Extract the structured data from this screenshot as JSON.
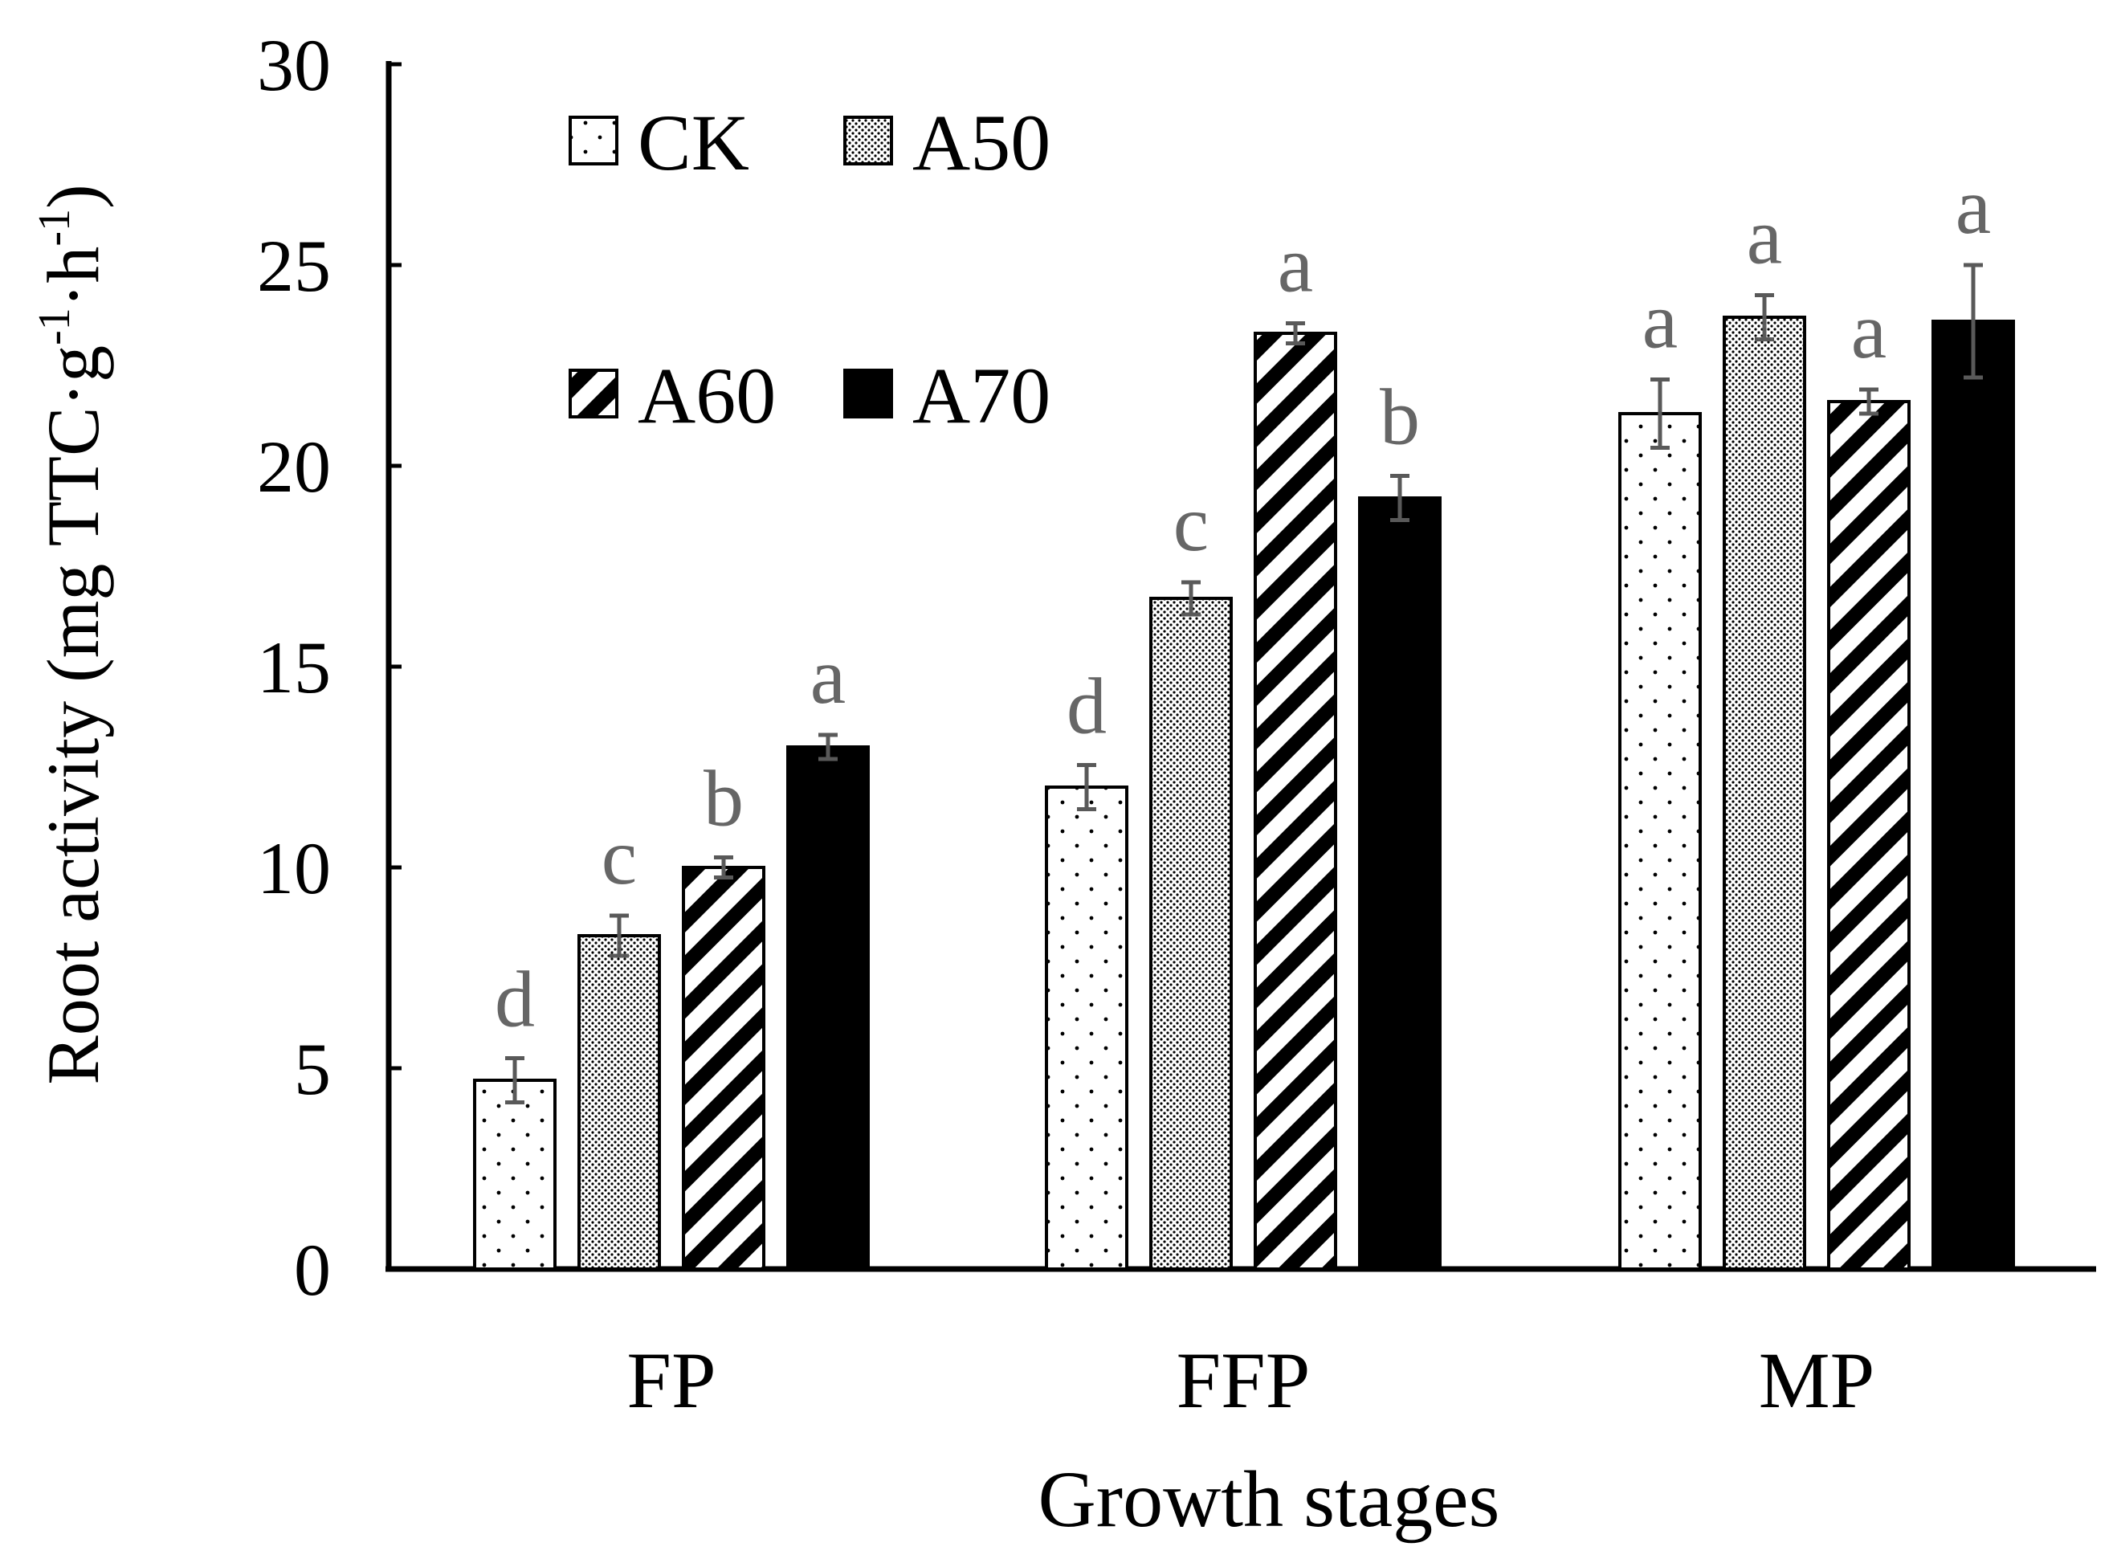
{
  "chart_data": {
    "type": "bar",
    "title": "",
    "xlabel": "Growth stages",
    "ylabel": "Root activity (mg TTC·g",
    "ylabel_sup1": "-1",
    "ylabel_mid": "·h",
    "ylabel_sup2": "-1",
    "ylabel_end": ")",
    "ylim": [
      0,
      30
    ],
    "yticks": [
      "0",
      "5",
      "10",
      "15",
      "20",
      "25",
      "30"
    ],
    "categories": [
      "FP",
      "FFP",
      "MP"
    ],
    "legend_position": "top-left",
    "series": [
      {
        "name": "CK",
        "pattern": "dots",
        "values": [
          4.7,
          12.0,
          21.3
        ],
        "errors": [
          0.55,
          0.55,
          0.85
        ],
        "letters": [
          "d",
          "d",
          "a"
        ]
      },
      {
        "name": "A50",
        "pattern": "fine-dots",
        "values": [
          8.3,
          16.7,
          23.7
        ],
        "errors": [
          0.5,
          0.4,
          0.55
        ],
        "letters": [
          "c",
          "c",
          "a"
        ]
      },
      {
        "name": "A60",
        "pattern": "diagonal",
        "values": [
          10.0,
          23.3,
          21.6
        ],
        "errors": [
          0.25,
          0.25,
          0.3
        ],
        "letters": [
          "b",
          "a",
          "a"
        ]
      },
      {
        "name": "A70",
        "pattern": "solid",
        "values": [
          13.0,
          19.2,
          23.6
        ],
        "errors": [
          0.3,
          0.55,
          1.4
        ],
        "letters": [
          "a",
          "b",
          "a"
        ]
      }
    ]
  }
}
